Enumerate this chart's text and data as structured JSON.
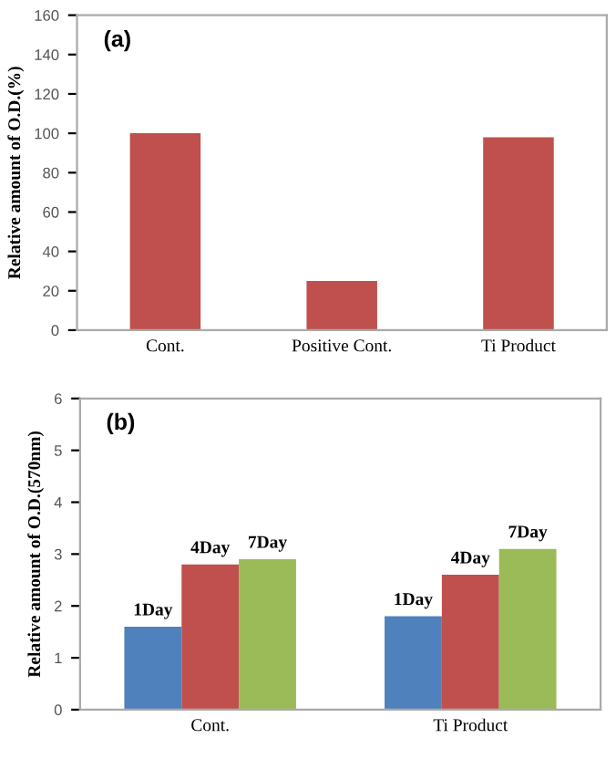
{
  "chart_data": [
    {
      "type": "bar",
      "ylabel": "Relative amount of O.D.(%)",
      "annotations": [
        "(a)"
      ],
      "categories": [
        "Cont.",
        "Positive Cont.",
        "Ti Product"
      ],
      "series": [
        {
          "color": "#c0504d",
          "values": [
            100,
            25,
            98
          ]
        }
      ],
      "ylim": [
        0,
        160
      ],
      "yticks": [
        0,
        20,
        40,
        60,
        80,
        100,
        120,
        140,
        160
      ],
      "grid": false,
      "legend": false
    },
    {
      "type": "bar",
      "ylabel": "Relative amount of O.D.(570nm)",
      "annotations": [
        "(b)"
      ],
      "categories": [
        "Cont.",
        "Ti Product"
      ],
      "series": [
        {
          "name": "1Day",
          "color": "#4f81bd",
          "values": [
            1.6,
            1.8
          ]
        },
        {
          "name": "4Day",
          "color": "#c0504d",
          "values": [
            2.8,
            2.6
          ]
        },
        {
          "name": "7Day",
          "color": "#9bbb59",
          "values": [
            2.9,
            3.1
          ]
        }
      ],
      "ylim": [
        0,
        6
      ],
      "yticks": [
        0,
        1,
        2,
        3,
        4,
        5,
        6
      ],
      "grid": false,
      "legend": false
    }
  ]
}
